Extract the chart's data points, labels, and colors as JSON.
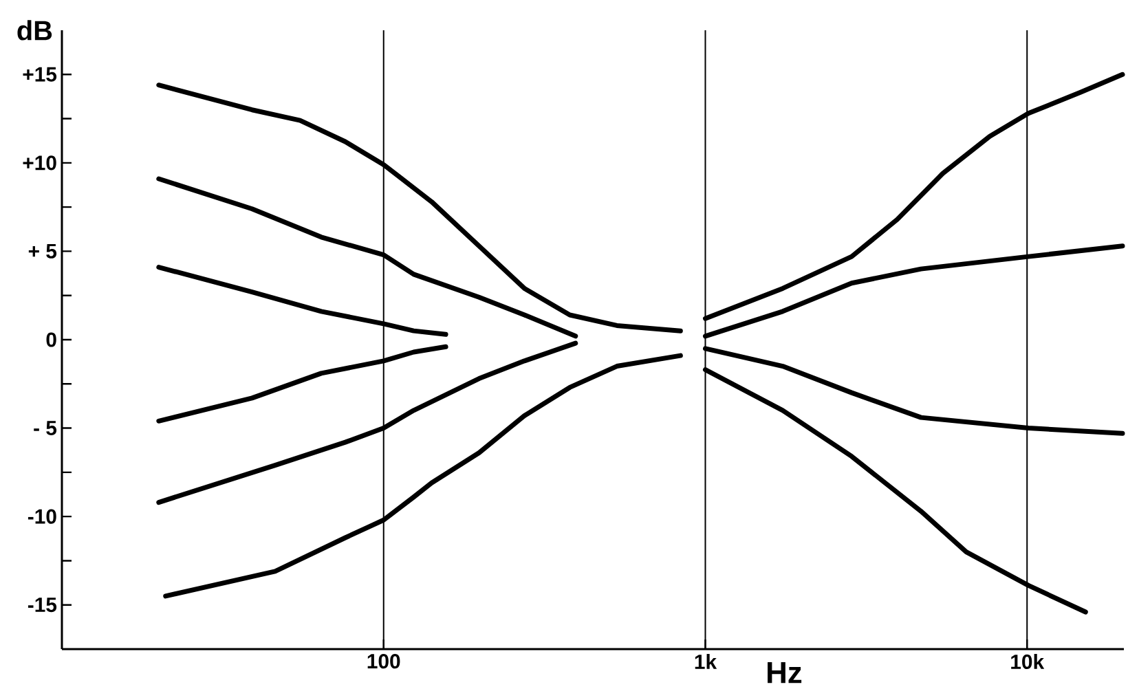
{
  "chart_data": {
    "type": "line",
    "xlabel": "Hz",
    "ylabel": "dB",
    "log": "x",
    "grid": "x",
    "marker": "none",
    "line_style": "solid",
    "xlim": [
      10,
      20000
    ],
    "xticks": [
      100,
      {
        "value": 1000,
        "label": "1k"
      },
      {
        "value": 10000,
        "label": "10k"
      }
    ],
    "ylim": [
      -17.5,
      17.5
    ],
    "yticks": [
      {
        "value": 15,
        "label": "+15"
      },
      {
        "value": 10,
        "label": "+10"
      },
      {
        "value": 5,
        "label": "+ 5"
      },
      0,
      {
        "value": -5,
        "label": "- 5"
      },
      -10,
      -15
    ],
    "series": [
      {
        "color": "#000000",
        "x": [
          20,
          39,
          55,
          76,
          100,
          141,
          198,
          274,
          379,
          531,
          837
        ],
        "values": [
          14.4,
          13.0,
          12.4,
          11.2,
          9.9,
          7.8,
          5.3,
          2.9,
          1.4,
          0.8,
          0.5
        ]
      },
      {
        "color": "#000000",
        "x": [
          20,
          39,
          64,
          100,
          124,
          198,
          274,
          395
        ],
        "values": [
          9.1,
          7.4,
          5.8,
          4.8,
          3.7,
          2.4,
          1.4,
          0.2
        ]
      },
      {
        "color": "#000000",
        "x": [
          20,
          39,
          64,
          100,
          124,
          156
        ],
        "values": [
          4.1,
          2.7,
          1.6,
          0.9,
          0.5,
          0.3
        ]
      },
      {
        "color": "#000000",
        "x": [
          20,
          39,
          64,
          100,
          124,
          156
        ],
        "values": [
          -4.6,
          -3.3,
          -1.9,
          -1.2,
          -0.7,
          -0.4
        ]
      },
      {
        "color": "#000000",
        "x": [
          20,
          46,
          76,
          100,
          124,
          198,
          274,
          395
        ],
        "values": [
          -9.2,
          -7.1,
          -5.8,
          -5.0,
          -4.0,
          -2.2,
          -1.2,
          -0.2
        ]
      },
      {
        "color": "#000000",
        "x": [
          21,
          46,
          76,
          100,
          124,
          141,
          198,
          274,
          379,
          531,
          837
        ],
        "values": [
          -14.5,
          -13.1,
          -11.2,
          -10.2,
          -8.9,
          -8.1,
          -6.4,
          -4.3,
          -2.7,
          -1.5,
          -0.9
        ]
      },
      {
        "color": "#000000",
        "x": [
          1000,
          1740,
          2850,
          3950,
          5470,
          7660,
          10100,
          14700,
          19800
        ],
        "values": [
          1.2,
          2.9,
          4.7,
          6.8,
          9.4,
          11.5,
          12.8,
          14.0,
          15.0
        ]
      },
      {
        "color": "#000000",
        "x": [
          1000,
          1740,
          2850,
          4680,
          10100,
          19800
        ],
        "values": [
          0.2,
          1.6,
          3.2,
          4.0,
          4.7,
          5.3
        ]
      },
      {
        "color": "#000000",
        "x": [
          1000,
          1740,
          2850,
          4680,
          10100,
          19800
        ],
        "values": [
          -0.5,
          -1.5,
          -3.0,
          -4.4,
          -5.0,
          -5.3
        ]
      },
      {
        "color": "#000000",
        "x": [
          1000,
          1740,
          2850,
          4680,
          6470,
          10100,
          15200
        ],
        "values": [
          -1.7,
          -4.0,
          -6.6,
          -9.7,
          -12.0,
          -13.9,
          -15.4
        ]
      }
    ]
  }
}
